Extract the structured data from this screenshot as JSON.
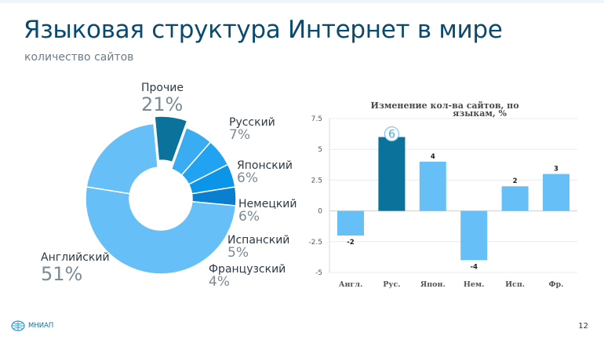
{
  "header": {
    "title": "Языковая структура Интернет в мире",
    "subtitle": "количество сайтов"
  },
  "chart_data": [
    {
      "type": "pie",
      "style": "donut",
      "subtitle": "количество сайтов",
      "slices": [
        {
          "label": "Английский",
          "value": 51,
          "display": "51%",
          "color": "#66bff7"
        },
        {
          "label": "Прочие",
          "value": 21,
          "display": "21%",
          "color": "#66bff7"
        },
        {
          "label": "Русский",
          "value": 7,
          "display": "7%",
          "color": "#0b729c"
        },
        {
          "label": "Японский",
          "value": 6,
          "display": "6%",
          "color": "#3aacf2"
        },
        {
          "label": "Немецкий",
          "value": 6,
          "display": "6%",
          "color": "#22a3f2"
        },
        {
          "label": "Испанский",
          "value": 5,
          "display": "5%",
          "color": "#0b95e8"
        },
        {
          "label": "Французский",
          "value": 4,
          "display": "4%",
          "color": "#0a7fd0"
        }
      ]
    },
    {
      "type": "bar",
      "title_line1": "Изменение кол-ва сайтов, по",
      "title_line2": "языкам, %",
      "categories": [
        "Англ.",
        "Рус.",
        "Япон.",
        "Нем.",
        "Исп.",
        "Фр."
      ],
      "values": [
        -2,
        6,
        4,
        -4,
        2,
        3
      ],
      "data_labels": [
        "-2",
        "6",
        "4",
        "-4",
        "2",
        "3"
      ],
      "highlight_index": 1,
      "bar_color": "#66bff7",
      "highlight_color": "#0b729c",
      "ylim": [
        -5,
        7.5
      ],
      "yticks": [
        7.5,
        5,
        2.5,
        0,
        -2.5,
        -5
      ],
      "ytick_labels": [
        "7.5",
        "5",
        "2.5",
        "0",
        "-2.5",
        "-5"
      ],
      "grid": true
    }
  ],
  "footer": {
    "logo_text": "МНИАП",
    "page_number": "12"
  }
}
